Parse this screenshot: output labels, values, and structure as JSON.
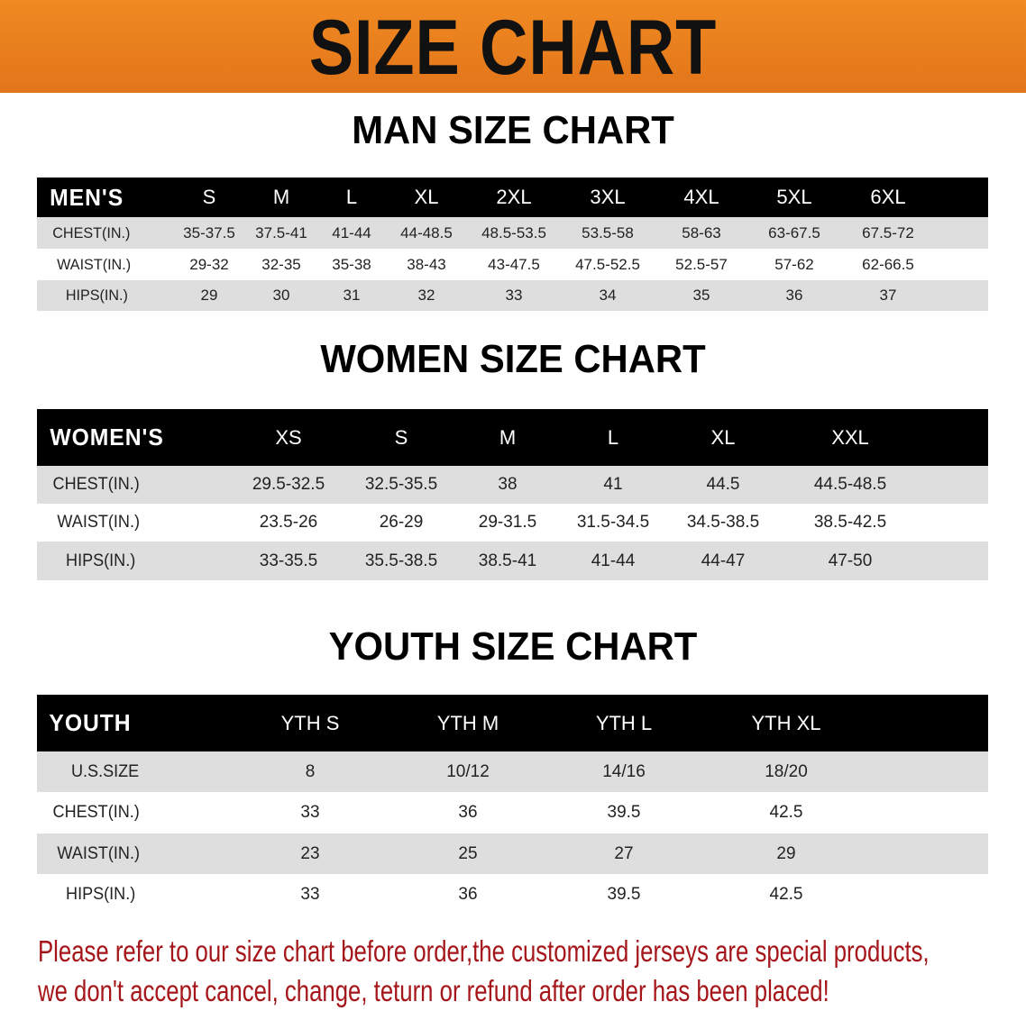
{
  "banner": {
    "title": "SIZE CHART",
    "color": "#e87e1e"
  },
  "men": {
    "title": "MAN SIZE CHART",
    "headers": [
      "MEN'S",
      "S",
      "M",
      "L",
      "XL",
      "2XL",
      "3XL",
      "4XL",
      "5XL",
      "6XL"
    ],
    "rows": [
      [
        "CHEST(IN.)",
        "35-37.5",
        "37.5-41",
        "41-44",
        "44-48.5",
        "48.5-53.5",
        "53.5-58",
        "58-63",
        "63-67.5",
        "67.5-72"
      ],
      [
        "WAIST(IN.)",
        "29-32",
        "32-35",
        "35-38",
        "38-43",
        "43-47.5",
        "47.5-52.5",
        "52.5-57",
        "57-62",
        "62-66.5"
      ],
      [
        "HIPS(IN.)",
        "29",
        "30",
        "31",
        "32",
        "33",
        "34",
        "35",
        "36",
        "37"
      ]
    ]
  },
  "women": {
    "title": "WOMEN SIZE CHART",
    "headers": [
      "WOMEN'S",
      "XS",
      "S",
      "M",
      "L",
      "XL",
      "XXL"
    ],
    "rows": [
      [
        "CHEST(IN.)",
        "29.5-32.5",
        "32.5-35.5",
        "38",
        "41",
        "44.5",
        "44.5-48.5"
      ],
      [
        "WAIST(IN.)",
        "23.5-26",
        "26-29",
        "29-31.5",
        "31.5-34.5",
        "34.5-38.5",
        "38.5-42.5"
      ],
      [
        "HIPS(IN.)",
        "33-35.5",
        "35.5-38.5",
        "38.5-41",
        "41-44",
        "44-47",
        "47-50"
      ]
    ]
  },
  "youth": {
    "title": "YOUTH SIZE CHART",
    "headers": [
      "YOUTH",
      "YTH S",
      "YTH M",
      "YTH L",
      "YTH XL"
    ],
    "rows": [
      [
        "U.S.SIZE",
        "8",
        "10/12",
        "14/16",
        "18/20"
      ],
      [
        "CHEST(IN.)",
        "33",
        "36",
        "39.5",
        "42.5"
      ],
      [
        "WAIST(IN.)",
        "23",
        "25",
        "27",
        "29"
      ],
      [
        "HIPS(IN.)",
        "33",
        "36",
        "39.5",
        "42.5"
      ]
    ]
  },
  "notice": {
    "line1": "Please refer to our size chart before order,the customized jerseys are special products,",
    "line2": "we don't accept cancel, change, teturn or refund after order has been placed!",
    "color": "#a5161a"
  }
}
